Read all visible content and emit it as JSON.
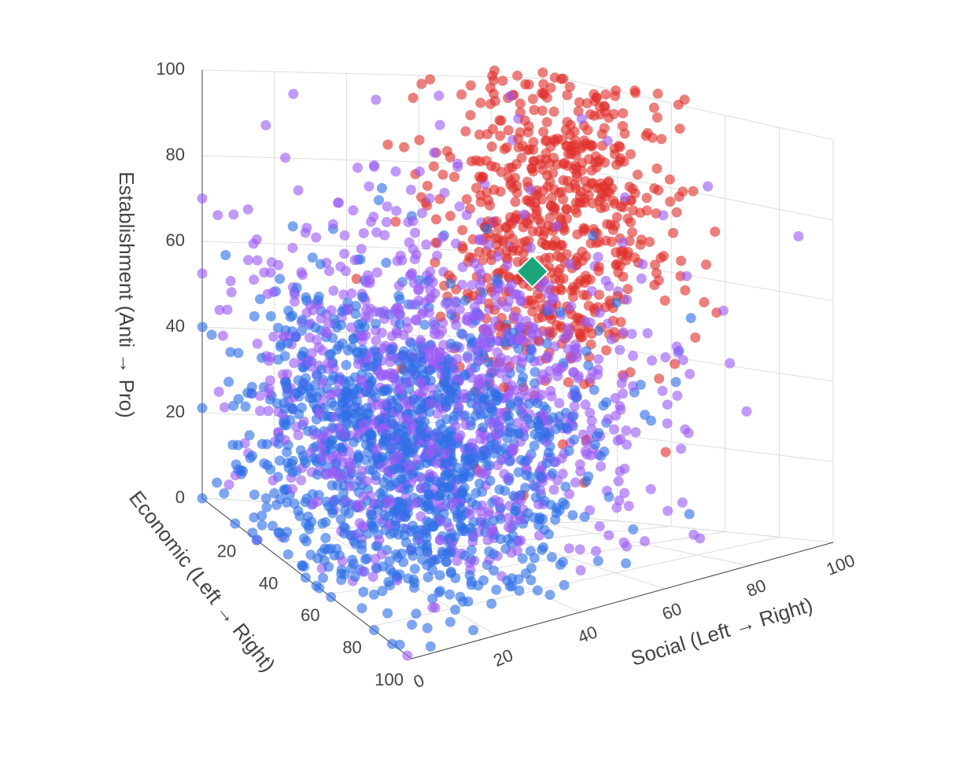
{
  "chart_data": {
    "type": "scatter",
    "title": "",
    "axes": {
      "x": {
        "title": "Social (Left → Right)",
        "ticks": [
          "0",
          "20",
          "40",
          "60",
          "80",
          "100"
        ],
        "range": [
          0,
          100
        ]
      },
      "y": {
        "title": "Economic (Left → Right)",
        "ticks": [
          "20",
          "40",
          "60",
          "80",
          "100"
        ],
        "range": [
          0,
          100
        ]
      },
      "z": {
        "title": "Establishment (Anti → Pro)",
        "ticks": [
          "0",
          "20",
          "40",
          "60",
          "80",
          "100"
        ],
        "range": [
          0,
          100
        ]
      }
    },
    "grid": true,
    "legend": "none",
    "clusters": [
      {
        "group": "blue",
        "color": "#2f6fe6",
        "count": 1200,
        "mean": [
          30,
          45,
          25
        ],
        "sd": [
          18,
          24,
          18
        ]
      },
      {
        "group": "purple",
        "color": "#9b5cf6",
        "count": 1000,
        "mean": [
          40,
          40,
          38
        ],
        "sd": [
          24,
          24,
          22
        ]
      },
      {
        "group": "red",
        "color": "#e0302b",
        "count": 650,
        "mean": [
          82,
          22,
          70
        ],
        "sd": [
          13,
          14,
          20
        ]
      }
    ],
    "highlight": {
      "label": "",
      "x": 80,
      "y": 16,
      "z": 58,
      "color": "#1aa67a",
      "shape": "diamond"
    }
  }
}
